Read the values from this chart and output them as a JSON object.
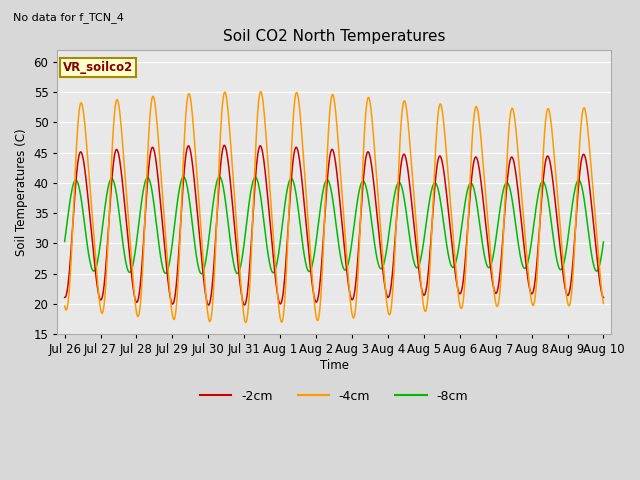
{
  "title": "Soil CO2 North Temperatures",
  "subtitle": "No data for f_TCN_4",
  "ylabel": "Soil Temperatures (C)",
  "xlabel": "Time",
  "ylim": [
    15,
    62
  ],
  "yticks": [
    15,
    20,
    25,
    30,
    35,
    40,
    45,
    50,
    55,
    60
  ],
  "bg_outer": "#d8d8d8",
  "bg_inner": "#e8e8e8",
  "line_colors": {
    "-2cm": "#cc0000",
    "-4cm": "#ff9900",
    "-8cm": "#00bb00"
  },
  "legend_box_facecolor": "#ffffcc",
  "legend_box_edgecolor": "#aa8800",
  "legend_box_text": "VR_soilco2",
  "legend_box_textcolor": "#880000",
  "xtick_labels": [
    "Jul 26",
    "Jul 27",
    "Jul 28",
    "Jul 29",
    "Jul 30",
    "Jul 31",
    "Aug 1",
    "Aug 2",
    "Aug 3",
    "Aug 4",
    "Aug 5",
    "Aug 6",
    "Aug 7",
    "Aug 8",
    "Aug 9",
    "Aug 10"
  ],
  "num_days": 15,
  "figsize": [
    6.4,
    4.8
  ],
  "dpi": 100
}
